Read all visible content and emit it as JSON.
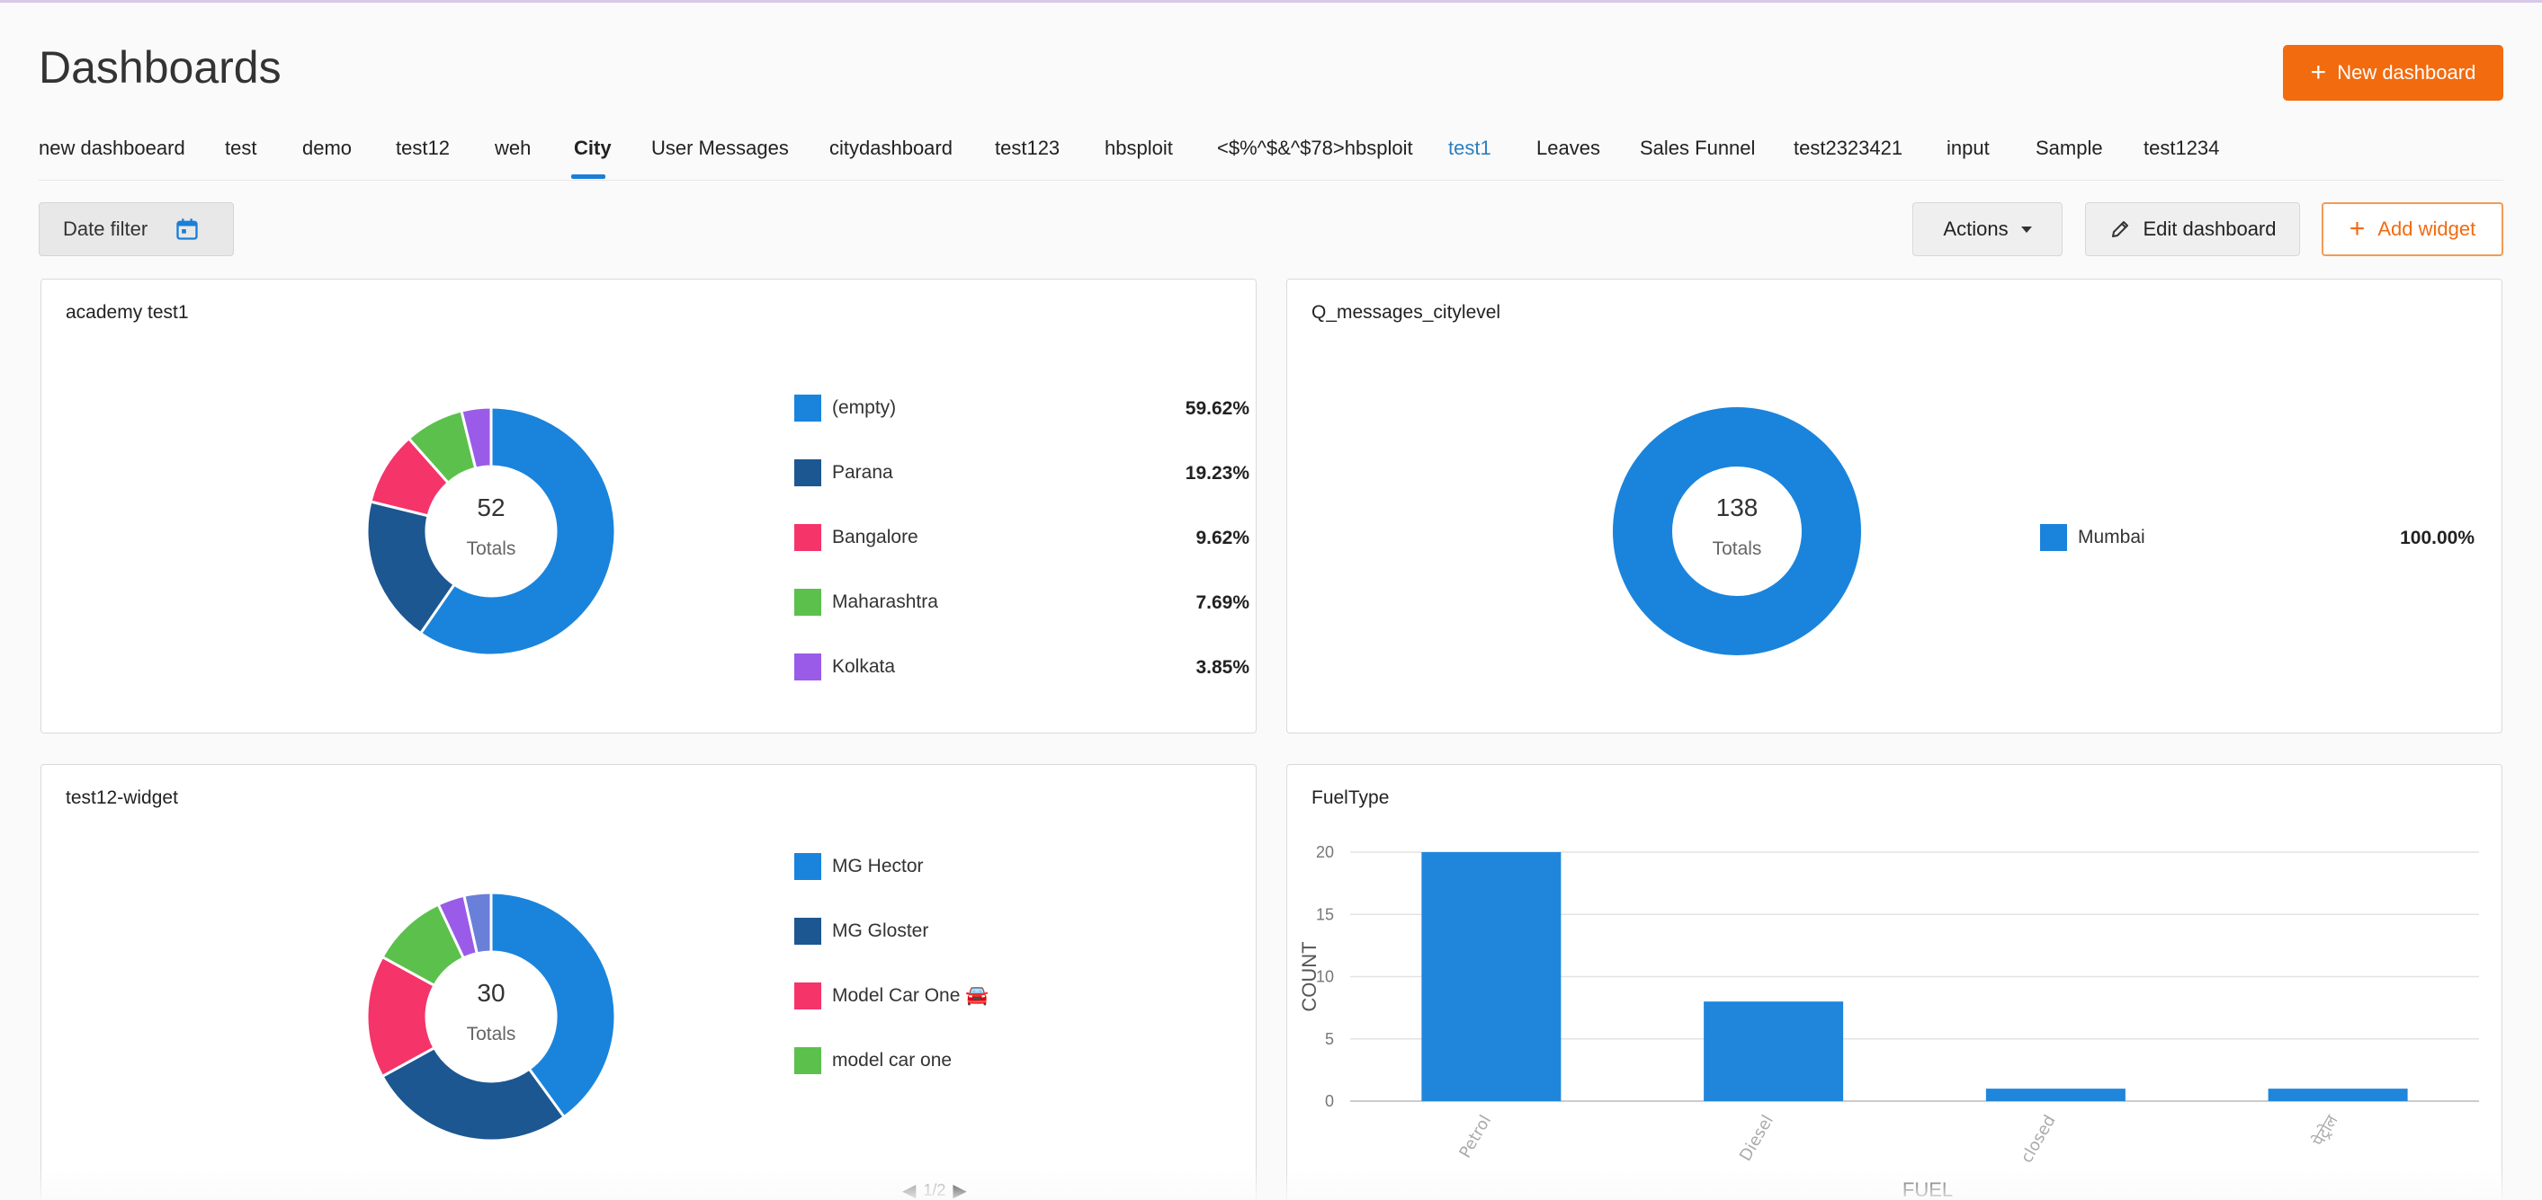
{
  "page": {
    "title": "Dashboards",
    "new_button_label": "New dashboard"
  },
  "tabs": [
    {
      "label": "new dashboeard"
    },
    {
      "label": "test"
    },
    {
      "label": "demo"
    },
    {
      "label": "test12"
    },
    {
      "label": "weh"
    },
    {
      "label": "City",
      "active": true
    },
    {
      "label": "User Messages"
    },
    {
      "label": "citydashboard"
    },
    {
      "label": "test123"
    },
    {
      "label": "hbsploit"
    },
    {
      "label": "<$%^$&^$78>hbsploit"
    },
    {
      "label": "test1",
      "link": true
    },
    {
      "label": "Leaves"
    },
    {
      "label": "Sales Funnel"
    },
    {
      "label": "test2323421"
    },
    {
      "label": "input"
    },
    {
      "label": "Sample"
    },
    {
      "label": "test1234"
    }
  ],
  "toolbar": {
    "date_filter_label": "Date filter",
    "actions_label": "Actions",
    "edit_label": "Edit dashboard",
    "add_widget_label": "Add widget"
  },
  "widgets": {
    "academy": {
      "title": "academy test1",
      "total": "52",
      "total_label": "Totals",
      "slices": [
        {
          "label": "(empty)",
          "pct": "59.62%",
          "value": 59.62,
          "color": "#1a84dc"
        },
        {
          "label": "Parana",
          "pct": "19.23%",
          "value": 19.23,
          "color": "#1c5791"
        },
        {
          "label": "Bangalore",
          "pct": "9.62%",
          "value": 9.62,
          "color": "#f5346a"
        },
        {
          "label": "Maharashtra",
          "pct": "7.69%",
          "value": 7.69,
          "color": "#5bc14c"
        },
        {
          "label": "Kolkata",
          "pct": "3.85%",
          "value": 3.85,
          "color": "#9a5ce8"
        }
      ]
    },
    "messages": {
      "title": "Q_messages_citylevel",
      "total": "138",
      "total_label": "Totals",
      "slices": [
        {
          "label": "Mumbai",
          "pct": "100.00%",
          "value": 100,
          "color": "#1a84dc"
        }
      ]
    },
    "test12": {
      "title": "test12-widget",
      "total": "30",
      "total_label": "Totals",
      "legend": [
        {
          "label": "MG Hector",
          "color": "#1a84dc"
        },
        {
          "label": "MG Gloster",
          "color": "#1c5791"
        },
        {
          "label": "Model Car One 🚘",
          "color": "#f5346a"
        },
        {
          "label": "model car one",
          "color": "#5bc14c"
        }
      ],
      "slices": [
        {
          "value": 40,
          "color": "#1a84dc"
        },
        {
          "value": 27,
          "color": "#1c5791"
        },
        {
          "value": 16,
          "color": "#f5346a"
        },
        {
          "value": 10,
          "color": "#5bc14c"
        },
        {
          "value": 3.5,
          "color": "#9a5ce8"
        },
        {
          "value": 3.5,
          "color": "#6a7fd8"
        }
      ],
      "pager": "1/2"
    },
    "fuel": {
      "title": "FuelType",
      "color": "#1f86dc"
    }
  },
  "chart_data": {
    "type": "bar",
    "categories": [
      "Petrol",
      "Diesel",
      "closed",
      "पेट्रोल"
    ],
    "values": [
      20,
      8,
      1,
      1
    ],
    "xlabel": "FUEL",
    "ylabel": "COUNT",
    "yticks": [
      "0",
      "5",
      "10",
      "15",
      "20"
    ],
    "ylim": [
      0,
      20
    ],
    "grid": true
  }
}
